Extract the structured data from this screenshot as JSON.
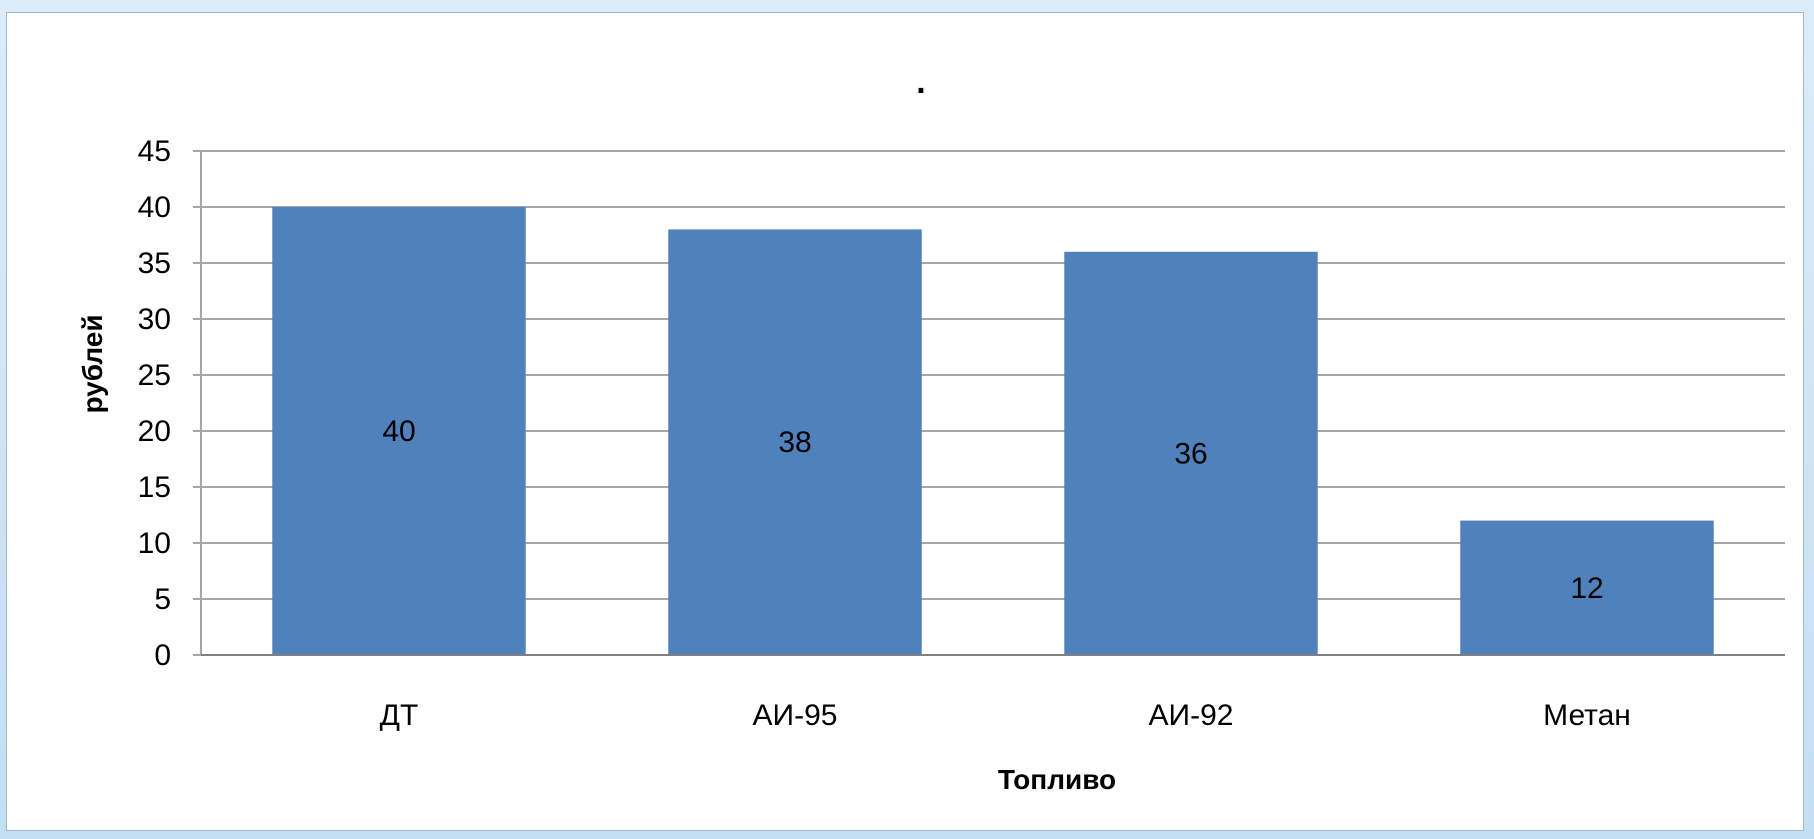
{
  "chart_data": {
    "type": "bar",
    "title": ".",
    "xlabel": "Топливо",
    "ylabel": "рублей",
    "categories": [
      "ДТ",
      "АИ-95",
      "АИ-92",
      "Метан"
    ],
    "values": [
      40,
      38,
      36,
      12
    ],
    "data_labels": [
      "40",
      "38",
      "36",
      "12"
    ],
    "y_ticks": [
      "0",
      "5",
      "10",
      "15",
      "20",
      "25",
      "30",
      "35",
      "40",
      "45"
    ],
    "ylim": [
      0,
      45
    ],
    "grid": true,
    "legend": "none",
    "bar_color": "#4f81bd",
    "grid_color": "#a6a6a6"
  }
}
